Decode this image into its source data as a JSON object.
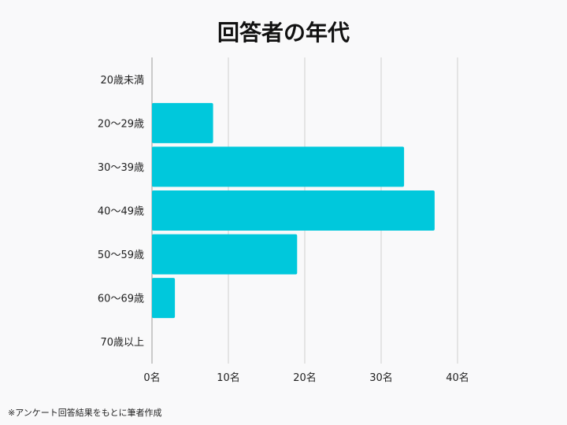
{
  "chart_data": {
    "type": "bar",
    "orientation": "horizontal",
    "title": "回答者の年代",
    "categories": [
      "20歳未満",
      "20〜29歳",
      "30〜39歳",
      "40〜49歳",
      "50〜59歳",
      "60〜69歳",
      "70歳以上"
    ],
    "values": [
      0,
      8,
      33,
      37,
      19,
      3,
      0
    ],
    "xlim": [
      0,
      40
    ],
    "xticks": [
      0,
      10,
      20,
      30,
      40
    ],
    "xtick_labels": [
      "0名",
      "10名",
      "20名",
      "30名",
      "40名"
    ],
    "grid": "vertical",
    "bar_color": "#00c8dc",
    "xlabel": "",
    "ylabel": ""
  },
  "footnote": "※アンケート回答結果をもとに筆者作成"
}
